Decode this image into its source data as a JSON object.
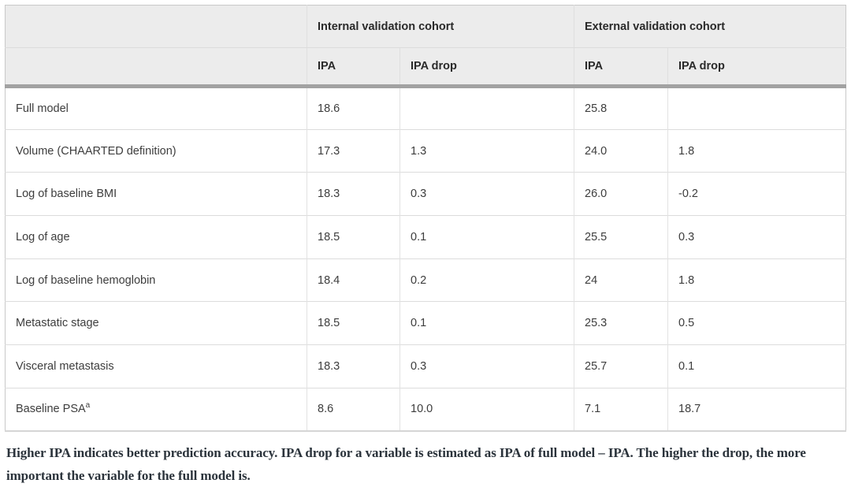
{
  "table": {
    "group_headers": [
      {
        "label": "Internal validation cohort"
      },
      {
        "label": "External validation cohort"
      }
    ],
    "sub_headers": [
      "IPA",
      "IPA drop",
      "IPA",
      "IPA drop"
    ],
    "rows": [
      {
        "label": "Full model",
        "superscript": "",
        "cells": [
          "18.6",
          "",
          "25.8",
          ""
        ]
      },
      {
        "label": "Volume (CHAARTED definition)",
        "superscript": "",
        "cells": [
          "17.3",
          "1.3",
          "24.0",
          "1.8"
        ]
      },
      {
        "label": "Log of baseline BMI",
        "superscript": "",
        "cells": [
          "18.3",
          "0.3",
          "26.0",
          "-0.2"
        ]
      },
      {
        "label": "Log of age",
        "superscript": "",
        "cells": [
          "18.5",
          "0.1",
          "25.5",
          "0.3"
        ]
      },
      {
        "label": "Log of baseline hemoglobin",
        "superscript": "",
        "cells": [
          "18.4",
          "0.2",
          "24",
          "1.8"
        ]
      },
      {
        "label": "Metastatic stage",
        "superscript": "",
        "cells": [
          "18.5",
          "0.1",
          "25.3",
          "0.5"
        ]
      },
      {
        "label": "Visceral metastasis",
        "superscript": "",
        "cells": [
          "18.3",
          "0.3",
          "25.7",
          "0.1"
        ]
      },
      {
        "label": "Baseline PSA",
        "superscript": "a",
        "cells": [
          "8.6",
          "10.0",
          "7.1",
          "18.7"
        ]
      }
    ]
  },
  "footnote": {
    "text": "Higher IPA indicates better prediction accuracy. IPA drop for a variable is estimated as IPA of full model – IPA. The higher the drop, the more important the variable for the full model is."
  },
  "colors": {
    "header_bg": "#ececec",
    "thick_divider": "#a2a2a2",
    "thin_border": "#dcdcdc",
    "body_text": "#3d3d3d",
    "header_text": "#2a2a2a",
    "footnote_text": "#2b333b"
  }
}
